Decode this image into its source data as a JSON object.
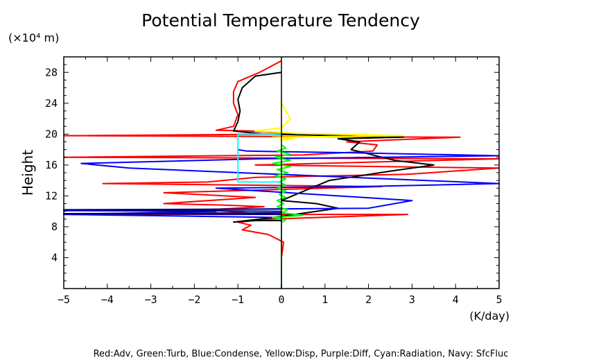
{
  "chart_data": {
    "type": "line",
    "title": "Potential Temperature Tendency",
    "xlabel": "(K/day)",
    "ylabel": "Height",
    "y_unit_label": "(×10⁴ m)",
    "xlim": [
      -5,
      5
    ],
    "ylim": [
      0,
      30
    ],
    "xticks": [
      -5,
      -4,
      -3,
      -2,
      -1,
      0,
      1,
      2,
      3,
      4,
      5
    ],
    "yticks": [
      4,
      8,
      12,
      16,
      20,
      24,
      28
    ],
    "xtick_labels": [
      "−5",
      "−4",
      "−3",
      "−2",
      "−1",
      "0",
      "1",
      "2",
      "3",
      "4",
      "5"
    ],
    "ytick_labels": [
      "4",
      "8",
      "12",
      "16",
      "20",
      "24",
      "28"
    ],
    "grid": false,
    "legend_text": "Red:Adv, Green:Turb, Blue:Condense, Yellow:Disp, Purple:Diff, Cyan:Radiation, Navy: SfcFluc",
    "series": [
      {
        "color": "#ff0000",
        "points": [
          [
            0,
            0
          ],
          [
            0,
            4
          ],
          [
            0.05,
            6
          ],
          [
            -0.3,
            7
          ],
          [
            -0.9,
            7.6
          ],
          [
            -0.7,
            8.2
          ],
          [
            -1,
            8.6
          ],
          [
            -0.2,
            9
          ],
          [
            2.9,
            9.6
          ],
          [
            -5,
            9.6
          ],
          [
            -0.8,
            9.8
          ],
          [
            -1.7,
            10.2
          ],
          [
            -0.4,
            10.6
          ],
          [
            -1.3,
            10.8
          ],
          [
            -2.7,
            11
          ],
          [
            -0.6,
            11.8
          ],
          [
            -2.7,
            12.4
          ],
          [
            2.3,
            13.2
          ],
          [
            -4.1,
            13.6
          ],
          [
            -1.7,
            13.8
          ],
          [
            -0.6,
            14.4
          ],
          [
            2.9,
            14.8
          ],
          [
            5,
            15.6
          ],
          [
            -0.6,
            16
          ],
          [
            5,
            16.8
          ],
          [
            -5,
            17
          ],
          [
            0.5,
            17.3
          ],
          [
            2.1,
            17.8
          ],
          [
            2.2,
            18.6
          ],
          [
            1.5,
            19
          ],
          [
            4.1,
            19.6
          ],
          [
            -5,
            19.8
          ],
          [
            0.3,
            20
          ],
          [
            -0.7,
            20.4
          ],
          [
            -1.5,
            20.5
          ],
          [
            -1.1,
            21
          ],
          [
            -1,
            22.5
          ],
          [
            -1.1,
            24
          ],
          [
            -1.1,
            25.5
          ],
          [
            -1,
            26.8
          ],
          [
            -0.5,
            28
          ],
          [
            0,
            29.5
          ]
        ]
      },
      {
        "color": "#000000",
        "points": [
          [
            0,
            0
          ],
          [
            0,
            8.8
          ],
          [
            -0.7,
            8.8
          ],
          [
            -1.1,
            8.6
          ],
          [
            -0.2,
            9.2
          ],
          [
            1.3,
            10.4
          ],
          [
            0.8,
            11
          ],
          [
            0,
            11.4
          ],
          [
            1.1,
            14
          ],
          [
            2.5,
            15.2
          ],
          [
            3.5,
            16
          ],
          [
            2.6,
            16.6
          ],
          [
            1.6,
            18
          ],
          [
            1.8,
            19
          ],
          [
            1.3,
            19.4
          ],
          [
            2.8,
            19.6
          ],
          [
            -0.4,
            20
          ],
          [
            -1.1,
            20.4
          ],
          [
            -1,
            21.6
          ],
          [
            -0.95,
            23
          ],
          [
            -1,
            24.5
          ],
          [
            -0.9,
            26
          ],
          [
            -0.6,
            27.5
          ],
          [
            0,
            28
          ]
        ]
      },
      {
        "color": "#0000ff",
        "points": [
          [
            0,
            0
          ],
          [
            0,
            9.2
          ],
          [
            -5,
            9.6
          ],
          [
            -1.5,
            10
          ],
          [
            -5,
            10.1
          ],
          [
            2,
            10.4
          ],
          [
            3,
            11.4
          ],
          [
            1.3,
            12
          ],
          [
            -1.5,
            13
          ],
          [
            1.8,
            13.2
          ],
          [
            5,
            13.6
          ],
          [
            -3.5,
            15.6
          ],
          [
            -4.6,
            16.2
          ],
          [
            -0.5,
            16.8
          ],
          [
            5,
            17.2
          ],
          [
            1.5,
            17.6
          ],
          [
            -0.8,
            17.8
          ],
          [
            -1,
            18
          ]
        ]
      },
      {
        "color": "#000080",
        "points": [
          [
            0,
            0
          ],
          [
            0,
            9.6
          ],
          [
            -5,
            9.7
          ],
          [
            0,
            9.8
          ],
          [
            0,
            10
          ],
          [
            -5,
            10.2
          ],
          [
            0,
            10.3
          ]
        ]
      },
      {
        "color": "#ffff00",
        "points": [
          [
            0,
            19.2
          ],
          [
            0.3,
            19.4
          ],
          [
            -0.2,
            19.6
          ],
          [
            2.8,
            19.8
          ],
          [
            0.4,
            20.1
          ],
          [
            -0.6,
            20.4
          ],
          [
            0,
            20.8
          ],
          [
            0.2,
            22
          ],
          [
            0.1,
            23
          ],
          [
            0,
            24
          ]
        ]
      },
      {
        "color": "#00ff00",
        "points": [
          [
            0,
            0.5
          ],
          [
            0,
            8.6
          ],
          [
            0.1,
            8.9
          ],
          [
            -0.2,
            9.2
          ],
          [
            0.5,
            9.5
          ],
          [
            0,
            9.8
          ],
          [
            0.15,
            10.2
          ],
          [
            -0.1,
            10.6
          ],
          [
            0.05,
            11
          ],
          [
            -0.1,
            11.4
          ],
          [
            0.1,
            11.8
          ],
          [
            -0.05,
            12.2
          ],
          [
            0.1,
            12.6
          ],
          [
            -0.1,
            13
          ],
          [
            0.1,
            13.4
          ],
          [
            -0.05,
            13.8
          ],
          [
            0.1,
            14.2
          ],
          [
            -0.15,
            14.6
          ],
          [
            0.15,
            15
          ],
          [
            -0.1,
            15.4
          ],
          [
            0.2,
            15.8
          ],
          [
            -0.2,
            16.2
          ],
          [
            0.2,
            16.6
          ],
          [
            -0.15,
            17
          ],
          [
            0.2,
            17.4
          ],
          [
            -0.1,
            17.8
          ],
          [
            0.1,
            18.2
          ],
          [
            0,
            18.6
          ]
        ]
      },
      {
        "color": "#00ffff",
        "points": [
          [
            0,
            13.8
          ],
          [
            -1,
            13.8
          ],
          [
            -1,
            20
          ],
          [
            0,
            20
          ]
        ]
      }
    ]
  }
}
